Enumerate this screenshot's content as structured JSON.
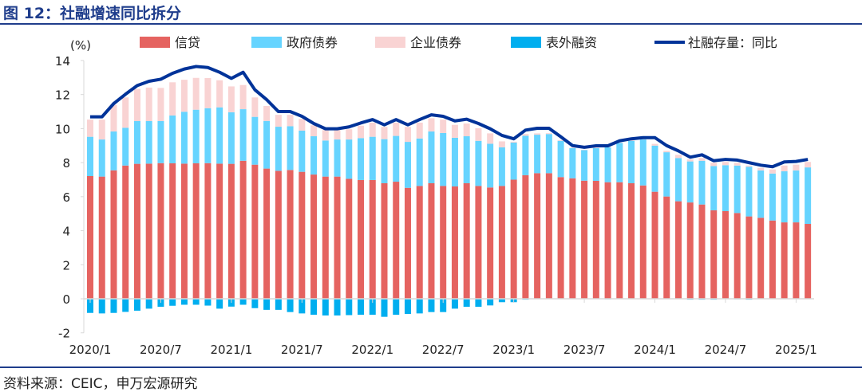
{
  "title": "图 12：社融增速同比拆分",
  "source": "资料来源：CEIC，申万宏源研究",
  "chart_data": {
    "type": "bar",
    "stacked": true,
    "title": "社融增速同比拆分",
    "ylabel": "(%)",
    "ylim": [
      -2,
      14
    ],
    "yticks": [
      -2,
      0,
      2,
      4,
      6,
      8,
      10,
      12,
      14
    ],
    "legend_position": "top",
    "categories": [
      "2020/1",
      "2020/2",
      "2020/3",
      "2020/4",
      "2020/5",
      "2020/6",
      "2020/7",
      "2020/8",
      "2020/9",
      "2020/10",
      "2020/11",
      "2020/12",
      "2021/1",
      "2021/2",
      "2021/3",
      "2021/4",
      "2021/5",
      "2021/6",
      "2021/7",
      "2021/8",
      "2021/9",
      "2021/10",
      "2021/11",
      "2021/12",
      "2022/1",
      "2022/2",
      "2022/3",
      "2022/4",
      "2022/5",
      "2022/6",
      "2022/7",
      "2022/8",
      "2022/9",
      "2022/10",
      "2022/11",
      "2022/12",
      "2023/1",
      "2023/2",
      "2023/3",
      "2023/4",
      "2023/5",
      "2023/6",
      "2023/7",
      "2023/8",
      "2023/9",
      "2023/10",
      "2023/11",
      "2023/12",
      "2024/1",
      "2024/2",
      "2024/3",
      "2024/4",
      "2024/5",
      "2024/6",
      "2024/7",
      "2024/8",
      "2024/9",
      "2024/10",
      "2024/11",
      "2024/12",
      "2025/1",
      "2025/2"
    ],
    "xtick_labels": [
      "2020/1",
      "2020/7",
      "2021/1",
      "2021/7",
      "2022/1",
      "2022/7",
      "2023/1",
      "2023/7",
      "2024/1",
      "2024/7",
      "2025/1"
    ],
    "series": [
      {
        "name": "信贷",
        "type": "bar",
        "color": "#e56360",
        "values": [
          7.21,
          7.18,
          7.55,
          7.83,
          7.93,
          7.94,
          7.97,
          7.96,
          7.94,
          7.96,
          7.97,
          7.94,
          7.93,
          8.11,
          7.88,
          7.65,
          7.52,
          7.57,
          7.46,
          7.3,
          7.18,
          7.18,
          7.05,
          6.98,
          6.98,
          6.79,
          6.88,
          6.52,
          6.63,
          6.79,
          6.63,
          6.6,
          6.79,
          6.63,
          6.54,
          6.63,
          7.0,
          7.26,
          7.38,
          7.38,
          7.15,
          7.08,
          6.94,
          6.93,
          6.85,
          6.85,
          6.79,
          6.66,
          6.29,
          6.01,
          5.73,
          5.66,
          5.54,
          5.2,
          5.15,
          5.04,
          4.84,
          4.76,
          4.6,
          4.49,
          4.49,
          4.4
        ]
      },
      {
        "name": "政府债券",
        "type": "bar",
        "color": "#66d4ff",
        "values": [
          2.31,
          2.18,
          2.28,
          2.22,
          2.51,
          2.5,
          2.47,
          2.81,
          3.05,
          3.15,
          3.23,
          3.31,
          3.03,
          3.03,
          2.81,
          2.8,
          2.59,
          2.57,
          2.42,
          2.25,
          2.12,
          2.18,
          2.31,
          2.46,
          2.54,
          2.59,
          2.69,
          2.7,
          2.79,
          3.04,
          3.11,
          2.86,
          2.76,
          2.65,
          2.57,
          2.27,
          2.18,
          2.32,
          2.26,
          2.3,
          2.13,
          1.77,
          1.8,
          1.92,
          2.05,
          2.31,
          2.49,
          2.7,
          2.71,
          2.6,
          2.54,
          2.41,
          2.57,
          2.6,
          2.7,
          2.79,
          2.92,
          2.78,
          2.76,
          3.0,
          3.05,
          3.32
        ]
      },
      {
        "name": "企业债券",
        "type": "bar",
        "color": "#f9d3d3",
        "values": [
          1.01,
          1.17,
          1.56,
          1.78,
          1.89,
          1.97,
          1.95,
          1.95,
          1.88,
          1.87,
          1.77,
          1.59,
          1.52,
          1.42,
          1.14,
          0.88,
          0.7,
          0.67,
          0.69,
          0.64,
          0.61,
          0.55,
          0.6,
          0.73,
          0.83,
          0.72,
          0.78,
          0.88,
          0.93,
          0.78,
          0.79,
          0.76,
          0.75,
          0.74,
          0.61,
          0.35,
          0.05,
          0.1,
          0.08,
          0.05,
          0.04,
          0.02,
          0.02,
          0.02,
          0.02,
          0.02,
          0.03,
          0.05,
          0.1,
          0.08,
          0.19,
          0.12,
          0.16,
          0.19,
          0.19,
          0.16,
          0.07,
          0.15,
          0.24,
          0.34,
          0.34,
          0.32
        ]
      },
      {
        "name": "表外融资",
        "type": "bar",
        "color": "#00aeef",
        "values": [
          -0.83,
          -0.86,
          -0.83,
          -0.77,
          -0.7,
          -0.58,
          -0.47,
          -0.41,
          -0.35,
          -0.35,
          -0.4,
          -0.58,
          -0.46,
          -0.35,
          -0.55,
          -0.65,
          -0.65,
          -0.78,
          -0.86,
          -0.94,
          -0.98,
          -0.98,
          -0.96,
          -0.94,
          -0.94,
          -1.06,
          -0.94,
          -0.89,
          -0.86,
          -0.78,
          -0.78,
          -0.58,
          -0.47,
          -0.47,
          -0.39,
          -0.2,
          -0.2,
          -0.05,
          -0.02,
          -0.02,
          -0.01,
          0,
          -0.01,
          -0.02,
          -0.03,
          -0.02,
          0,
          -0.01,
          -0.02,
          -0.01,
          -0.02,
          -0.05,
          -0.05,
          -0.05,
          -0.01,
          -0.03,
          -0.05,
          -0.01,
          -0.01,
          -0.01,
          -0.01,
          -0.01
        ]
      },
      {
        "name": "社融存量：同比",
        "type": "line",
        "color": "#003399",
        "values": [
          10.69,
          10.69,
          11.47,
          12.02,
          12.53,
          12.78,
          12.9,
          13.25,
          13.5,
          13.65,
          13.59,
          13.31,
          12.95,
          13.31,
          12.28,
          11.7,
          11.0,
          11.0,
          10.72,
          10.3,
          9.99,
          9.99,
          10.1,
          10.33,
          10.53,
          10.22,
          10.53,
          10.22,
          10.53,
          10.81,
          10.72,
          10.45,
          10.55,
          10.3,
          9.99,
          9.6,
          9.4,
          9.91,
          10.02,
          10.02,
          9.52,
          9.0,
          8.9,
          8.99,
          8.99,
          9.28,
          9.4,
          9.47,
          9.47,
          9.0,
          8.69,
          8.32,
          8.46,
          8.11,
          8.19,
          8.15,
          8.0,
          7.85,
          7.76,
          8.04,
          8.07,
          8.19
        ]
      }
    ]
  }
}
